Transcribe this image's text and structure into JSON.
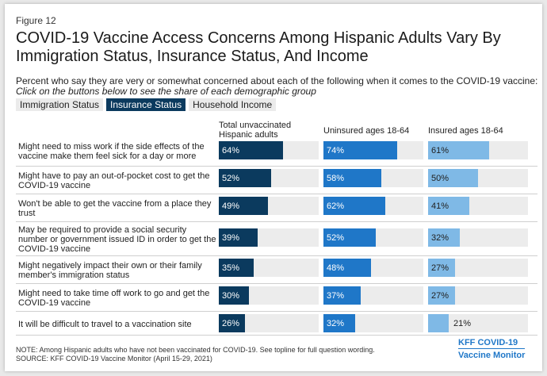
{
  "figure_label": "Figure 12",
  "title": "COVID-19 Vaccine Access Concerns Among Hispanic Adults Vary By Immigration Status, Insurance Status, And Income",
  "subtitle": "Percent who say they are very or somewhat concerned about each of the following when it comes to the COVID-19 vaccine:",
  "instruction": "Click on the buttons below to see the share of each demographic group",
  "tabs": [
    {
      "label": "Immigration Status",
      "active": false
    },
    {
      "label": "Insurance Status",
      "active": true
    },
    {
      "label": "Household Income",
      "active": false
    }
  ],
  "colors": {
    "series0": "#0b3a5e",
    "series1": "#1f77c8",
    "series2": "#7fb9e6",
    "track": "#ececec"
  },
  "chart_data": {
    "type": "bar",
    "xlim": [
      0,
      100
    ],
    "categories": [
      "Might need to miss work if the side effects of the vaccine make them feel sick for a day or more",
      "Might have to pay an out-of-pocket cost to get the COVID-19 vaccine",
      "Won't be able to get the vaccine from a place they trust",
      "May be required to provide a social security number or government issued ID in order to get the COVID-19 vaccine",
      "Might negatively impact their own or their family member's immigration status",
      "Might need to take time off work to go and get the COVID-19 vaccine",
      "It will be difficult to travel to a vaccination site"
    ],
    "series": [
      {
        "name": "Total unvaccinated Hispanic adults",
        "values": [
          64,
          52,
          49,
          39,
          35,
          30,
          26
        ]
      },
      {
        "name": "Uninsured ages 18-64",
        "values": [
          74,
          58,
          62,
          52,
          48,
          37,
          32
        ]
      },
      {
        "name": "Insured ages 18-64",
        "values": [
          61,
          50,
          41,
          32,
          27,
          27,
          21
        ]
      }
    ]
  },
  "note": "NOTE: Among Hispanic adults who have not been vaccinated for COVID-19. See topline for full question wording.",
  "source": "SOURCE: KFF COVID-19 Vaccine Monitor (April 15-29, 2021)",
  "logo": {
    "line1": "KFF COVID-19",
    "line2": "Vaccine Monitor"
  }
}
